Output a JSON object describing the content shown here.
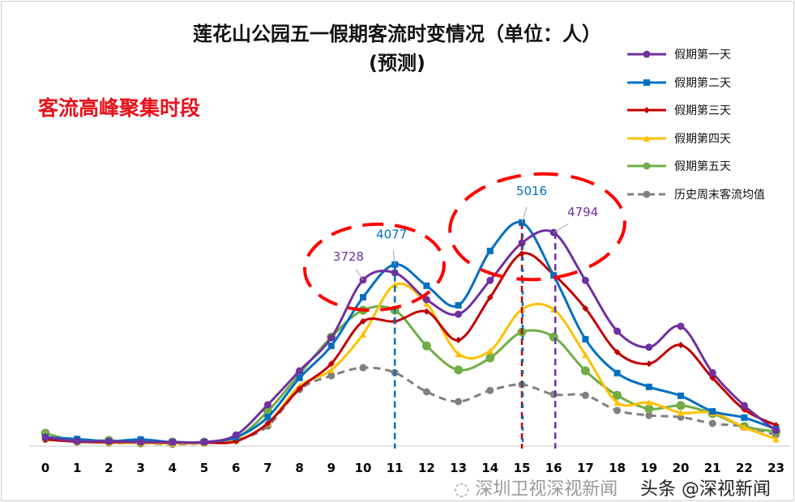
{
  "chart_data": {
    "type": "line",
    "title": "莲花山公园五一假期客流时变情况（单位：人）",
    "subtitle": "(预测)",
    "annotation": "客流高峰聚集时段",
    "categories": [
      "0",
      "1",
      "2",
      "3",
      "4",
      "5",
      "6",
      "7",
      "8",
      "9",
      "10",
      "11",
      "12",
      "13",
      "14",
      "15",
      "16",
      "17",
      "18",
      "19",
      "20",
      "21",
      "22",
      "23"
    ],
    "y_axis_visible": false,
    "grid": false,
    "legend_position": "top-right",
    "smooth": true,
    "series": [
      {
        "name": "假期第一天",
        "color": "#7030a0",
        "marker": "circle",
        "dashed": false,
        "values": [
          200,
          110,
          110,
          90,
          90,
          90,
          250,
          930,
          1690,
          2430,
          3728,
          3890,
          3290,
          2960,
          3720,
          4560,
          4794,
          3720,
          2580,
          2220,
          2690,
          1650,
          910,
          350
        ]
      },
      {
        "name": "假期第二天",
        "color": "#0070c0",
        "marker": "square",
        "dashed": false,
        "values": [
          200,
          160,
          110,
          150,
          90,
          90,
          200,
          650,
          1530,
          2250,
          3340,
          4077,
          3600,
          3160,
          4380,
          5016,
          3830,
          2400,
          1640,
          1330,
          1130,
          780,
          640,
          380
        ]
      },
      {
        "name": "假期第三天",
        "color": "#c00000",
        "marker": "diamond",
        "dashed": false,
        "values": [
          150,
          100,
          90,
          90,
          80,
          80,
          110,
          510,
          1290,
          1850,
          2800,
          2800,
          3020,
          2380,
          3340,
          4320,
          3850,
          3090,
          2110,
          1850,
          2270,
          1530,
          820,
          470
        ]
      },
      {
        "name": "假期第四天",
        "color": "#ffc000",
        "marker": "triangle",
        "dashed": false,
        "values": [
          180,
          100,
          80,
          70,
          60,
          70,
          130,
          510,
          1350,
          1710,
          2510,
          3620,
          3200,
          2070,
          2140,
          3070,
          3070,
          2050,
          980,
          980,
          750,
          750,
          420,
          160
        ]
      },
      {
        "name": "假期第五天",
        "color": "#70ad47",
        "marker": "circle",
        "dashed": false,
        "values": [
          290,
          110,
          130,
          70,
          90,
          90,
          180,
          780,
          1620,
          2450,
          3050,
          3050,
          2250,
          1710,
          1980,
          2560,
          2450,
          1690,
          1140,
          840,
          910,
          730,
          440,
          330
        ]
      },
      {
        "name": "历史周末客流均值",
        "color": "#808080",
        "marker": "circle",
        "dashed": true,
        "values": [
          150,
          110,
          70,
          70,
          40,
          70,
          130,
          450,
          1270,
          1580,
          1760,
          1650,
          1220,
          1000,
          1250,
          1380,
          1160,
          1140,
          800,
          690,
          650,
          510,
          440,
          250
        ]
      }
    ],
    "data_labels": [
      {
        "text": "3728",
        "series": 0,
        "x": "10",
        "color": "#7030a0"
      },
      {
        "text": "4077",
        "series": 1,
        "x": "11",
        "color": "#0070c0"
      },
      {
        "text": "5016",
        "series": 1,
        "x": "15",
        "color": "#0070c0"
      },
      {
        "text": "4794",
        "series": 0,
        "x": "16",
        "color": "#7030a0"
      }
    ],
    "reference_lines": [
      {
        "x": "11",
        "color": "#0070c0"
      },
      {
        "x": "15",
        "color": "#c00000"
      },
      {
        "x": "15",
        "color": "#0070c0"
      },
      {
        "x": "16",
        "color": "#7030a0"
      }
    ],
    "highlight_color": "#ff0000"
  },
  "watermark": {
    "line1": "深圳卫视深视新闻",
    "line2": "头条 @深视新闻"
  }
}
